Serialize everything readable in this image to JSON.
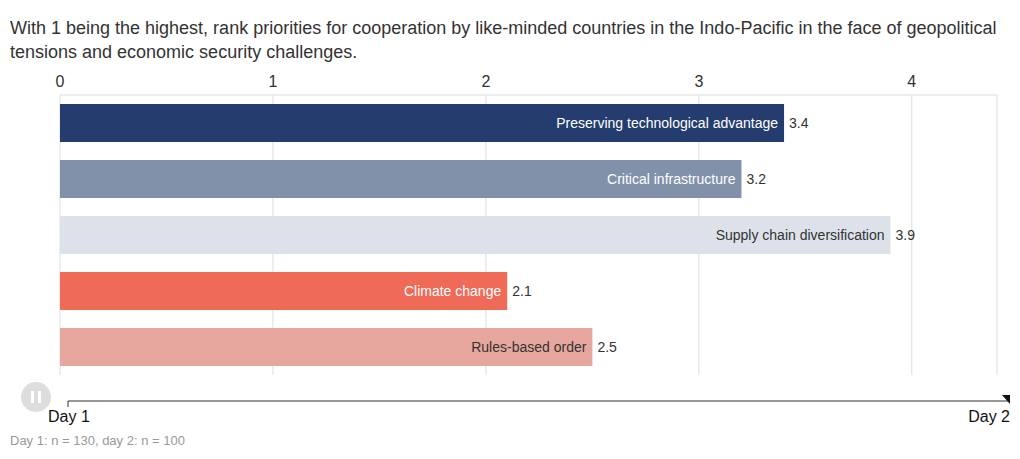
{
  "chart_data": {
    "type": "bar",
    "orientation": "horizontal",
    "title": "With 1 being the highest, rank priorities for cooperation by like-minded countries in the Indo-Pacific in the face of geopolitical tensions and economic security challenges.",
    "categories": [
      "Preserving technological advantage",
      "Critical infrastructure",
      "Supply chain diversification",
      "Climate change",
      "Rules-based order"
    ],
    "values": [
      3.4,
      3.2,
      3.9,
      2.1,
      2.5
    ],
    "colors": [
      "#243c6e",
      "#8291aa",
      "#dde2ea",
      "#f06a58",
      "#e8a79e"
    ],
    "xlim": [
      0,
      4.4
    ],
    "xticks": [
      0,
      1,
      2,
      3,
      4
    ],
    "grid": true,
    "data_labels": true,
    "slider_labels": [
      "Day 1",
      "Day 2"
    ],
    "footnote": "Day 1: n = 130, day 2: n = 100"
  }
}
